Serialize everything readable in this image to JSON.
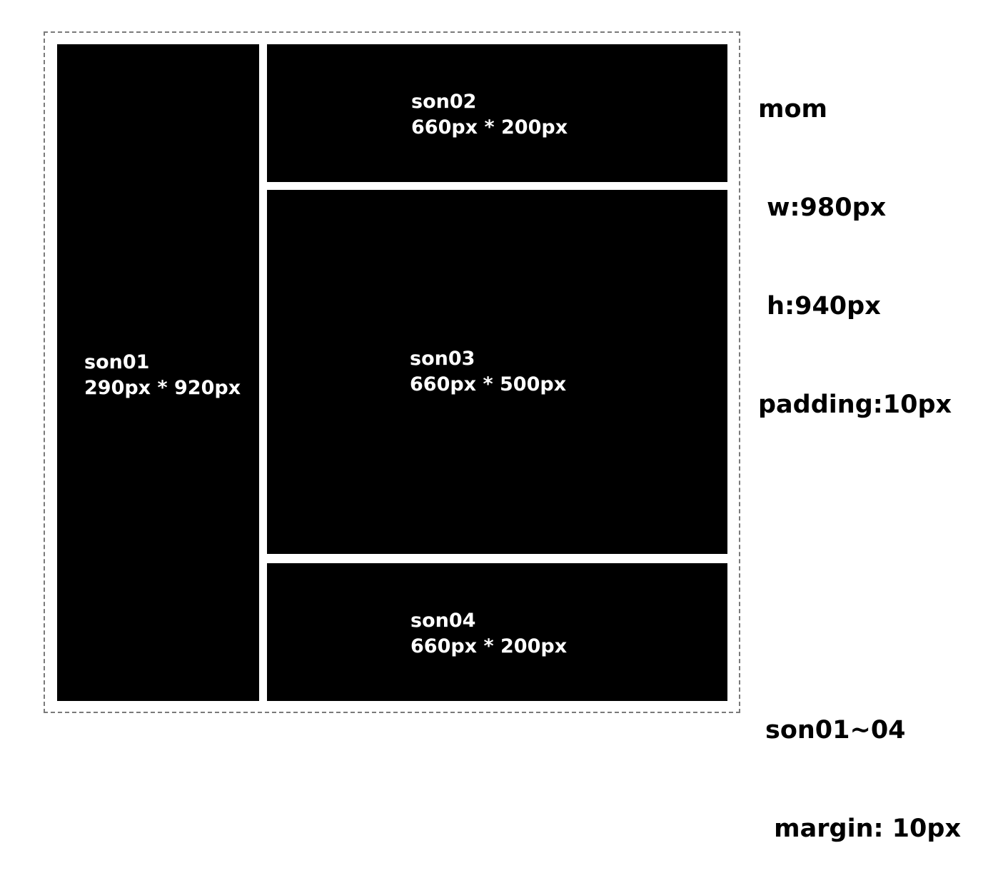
{
  "mom": {
    "title": "mom",
    "width": " w:980px",
    "height": " h:940px",
    "padding": "padding:10px"
  },
  "sons": [
    {
      "name": "son01",
      "size": "290px * 920px"
    },
    {
      "name": "son02",
      "size": "660px * 200px"
    },
    {
      "name": "son03",
      "size": "660px * 500px"
    },
    {
      "name": "son04",
      "size": "660px * 200px"
    }
  ],
  "margin_note": {
    "title": "son01~04",
    "margin": " margin: 10px"
  }
}
